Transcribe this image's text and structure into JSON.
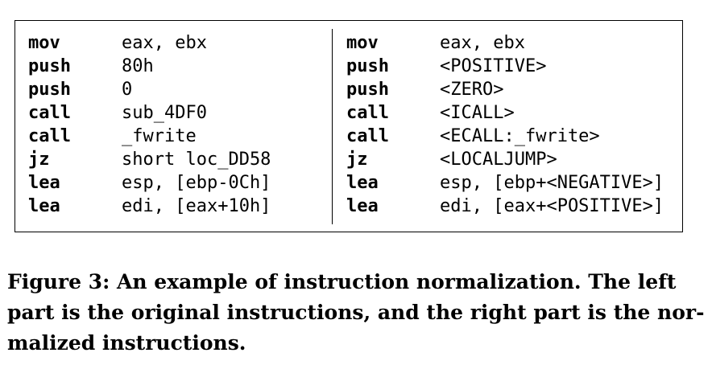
{
  "figure": {
    "original": [
      {
        "op": "mov",
        "args": "eax, ebx"
      },
      {
        "op": "push",
        "args": "80h"
      },
      {
        "op": "push",
        "args": "0"
      },
      {
        "op": "call",
        "args": "sub_4DF0"
      },
      {
        "op": "call",
        "args": "_fwrite"
      },
      {
        "op": "jz",
        "args": "short loc_DD58"
      },
      {
        "op": "lea",
        "args": "esp, [ebp-0Ch]"
      },
      {
        "op": "lea",
        "args": "edi, [eax+10h]"
      }
    ],
    "normalized": [
      {
        "op": "mov",
        "args": "eax, ebx"
      },
      {
        "op": "push",
        "args": "<POSITIVE>"
      },
      {
        "op": "push",
        "args": "<ZERO>"
      },
      {
        "op": "call",
        "args": "<ICALL>"
      },
      {
        "op": "call",
        "args": "<ECALL:_fwrite>"
      },
      {
        "op": "jz",
        "args": "<LOCALJUMP>"
      },
      {
        "op": "lea",
        "args": "esp, [ebp+<NEGATIVE>]"
      },
      {
        "op": "lea",
        "args": "edi, [eax+<POSITIVE>]"
      }
    ]
  },
  "caption": "Figure 3: An example of instruction normalization. The left part is the original instructions, and the right part is the nor­malized instructions."
}
